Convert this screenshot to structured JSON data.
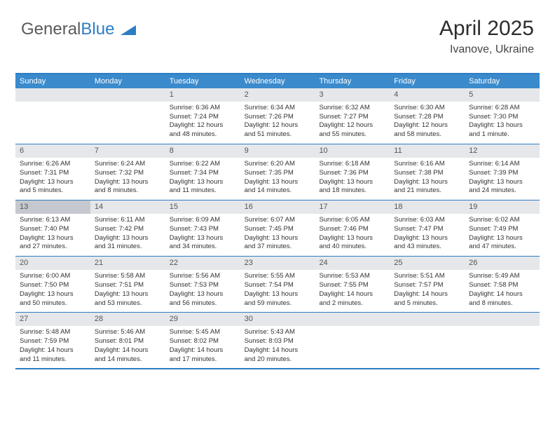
{
  "logo": {
    "part1": "General",
    "part2": "Blue"
  },
  "title": {
    "month_year": "April 2025",
    "location": "Ivanove, Ukraine"
  },
  "header_bg": "#3a8acc",
  "border_color": "#2d7dc4",
  "daynum_bg": "#e5e7ea",
  "daynum_hl_bg": "#c5c9cf",
  "day_headers": [
    "Sunday",
    "Monday",
    "Tuesday",
    "Wednesday",
    "Thursday",
    "Friday",
    "Saturday"
  ],
  "weeks": [
    [
      {
        "n": "",
        "sr": "",
        "ss": "",
        "dl": ""
      },
      {
        "n": "",
        "sr": "",
        "ss": "",
        "dl": ""
      },
      {
        "n": "1",
        "sr": "Sunrise: 6:36 AM",
        "ss": "Sunset: 7:24 PM",
        "dl": "Daylight: 12 hours and 48 minutes."
      },
      {
        "n": "2",
        "sr": "Sunrise: 6:34 AM",
        "ss": "Sunset: 7:26 PM",
        "dl": "Daylight: 12 hours and 51 minutes."
      },
      {
        "n": "3",
        "sr": "Sunrise: 6:32 AM",
        "ss": "Sunset: 7:27 PM",
        "dl": "Daylight: 12 hours and 55 minutes."
      },
      {
        "n": "4",
        "sr": "Sunrise: 6:30 AM",
        "ss": "Sunset: 7:28 PM",
        "dl": "Daylight: 12 hours and 58 minutes."
      },
      {
        "n": "5",
        "sr": "Sunrise: 6:28 AM",
        "ss": "Sunset: 7:30 PM",
        "dl": "Daylight: 13 hours and 1 minute."
      }
    ],
    [
      {
        "n": "6",
        "sr": "Sunrise: 6:26 AM",
        "ss": "Sunset: 7:31 PM",
        "dl": "Daylight: 13 hours and 5 minutes."
      },
      {
        "n": "7",
        "sr": "Sunrise: 6:24 AM",
        "ss": "Sunset: 7:32 PM",
        "dl": "Daylight: 13 hours and 8 minutes."
      },
      {
        "n": "8",
        "sr": "Sunrise: 6:22 AM",
        "ss": "Sunset: 7:34 PM",
        "dl": "Daylight: 13 hours and 11 minutes."
      },
      {
        "n": "9",
        "sr": "Sunrise: 6:20 AM",
        "ss": "Sunset: 7:35 PM",
        "dl": "Daylight: 13 hours and 14 minutes."
      },
      {
        "n": "10",
        "sr": "Sunrise: 6:18 AM",
        "ss": "Sunset: 7:36 PM",
        "dl": "Daylight: 13 hours and 18 minutes."
      },
      {
        "n": "11",
        "sr": "Sunrise: 6:16 AM",
        "ss": "Sunset: 7:38 PM",
        "dl": "Daylight: 13 hours and 21 minutes."
      },
      {
        "n": "12",
        "sr": "Sunrise: 6:14 AM",
        "ss": "Sunset: 7:39 PM",
        "dl": "Daylight: 13 hours and 24 minutes."
      }
    ],
    [
      {
        "n": "13",
        "hl": true,
        "sr": "Sunrise: 6:13 AM",
        "ss": "Sunset: 7:40 PM",
        "dl": "Daylight: 13 hours and 27 minutes."
      },
      {
        "n": "14",
        "sr": "Sunrise: 6:11 AM",
        "ss": "Sunset: 7:42 PM",
        "dl": "Daylight: 13 hours and 31 minutes."
      },
      {
        "n": "15",
        "sr": "Sunrise: 6:09 AM",
        "ss": "Sunset: 7:43 PM",
        "dl": "Daylight: 13 hours and 34 minutes."
      },
      {
        "n": "16",
        "sr": "Sunrise: 6:07 AM",
        "ss": "Sunset: 7:45 PM",
        "dl": "Daylight: 13 hours and 37 minutes."
      },
      {
        "n": "17",
        "sr": "Sunrise: 6:05 AM",
        "ss": "Sunset: 7:46 PM",
        "dl": "Daylight: 13 hours and 40 minutes."
      },
      {
        "n": "18",
        "sr": "Sunrise: 6:03 AM",
        "ss": "Sunset: 7:47 PM",
        "dl": "Daylight: 13 hours and 43 minutes."
      },
      {
        "n": "19",
        "sr": "Sunrise: 6:02 AM",
        "ss": "Sunset: 7:49 PM",
        "dl": "Daylight: 13 hours and 47 minutes."
      }
    ],
    [
      {
        "n": "20",
        "sr": "Sunrise: 6:00 AM",
        "ss": "Sunset: 7:50 PM",
        "dl": "Daylight: 13 hours and 50 minutes."
      },
      {
        "n": "21",
        "sr": "Sunrise: 5:58 AM",
        "ss": "Sunset: 7:51 PM",
        "dl": "Daylight: 13 hours and 53 minutes."
      },
      {
        "n": "22",
        "sr": "Sunrise: 5:56 AM",
        "ss": "Sunset: 7:53 PM",
        "dl": "Daylight: 13 hours and 56 minutes."
      },
      {
        "n": "23",
        "sr": "Sunrise: 5:55 AM",
        "ss": "Sunset: 7:54 PM",
        "dl": "Daylight: 13 hours and 59 minutes."
      },
      {
        "n": "24",
        "sr": "Sunrise: 5:53 AM",
        "ss": "Sunset: 7:55 PM",
        "dl": "Daylight: 14 hours and 2 minutes."
      },
      {
        "n": "25",
        "sr": "Sunrise: 5:51 AM",
        "ss": "Sunset: 7:57 PM",
        "dl": "Daylight: 14 hours and 5 minutes."
      },
      {
        "n": "26",
        "sr": "Sunrise: 5:49 AM",
        "ss": "Sunset: 7:58 PM",
        "dl": "Daylight: 14 hours and 8 minutes."
      }
    ],
    [
      {
        "n": "27",
        "sr": "Sunrise: 5:48 AM",
        "ss": "Sunset: 7:59 PM",
        "dl": "Daylight: 14 hours and 11 minutes."
      },
      {
        "n": "28",
        "sr": "Sunrise: 5:46 AM",
        "ss": "Sunset: 8:01 PM",
        "dl": "Daylight: 14 hours and 14 minutes."
      },
      {
        "n": "29",
        "sr": "Sunrise: 5:45 AM",
        "ss": "Sunset: 8:02 PM",
        "dl": "Daylight: 14 hours and 17 minutes."
      },
      {
        "n": "30",
        "sr": "Sunrise: 5:43 AM",
        "ss": "Sunset: 8:03 PM",
        "dl": "Daylight: 14 hours and 20 minutes."
      },
      {
        "n": "",
        "sr": "",
        "ss": "",
        "dl": ""
      },
      {
        "n": "",
        "sr": "",
        "ss": "",
        "dl": ""
      },
      {
        "n": "",
        "sr": "",
        "ss": "",
        "dl": ""
      }
    ]
  ]
}
